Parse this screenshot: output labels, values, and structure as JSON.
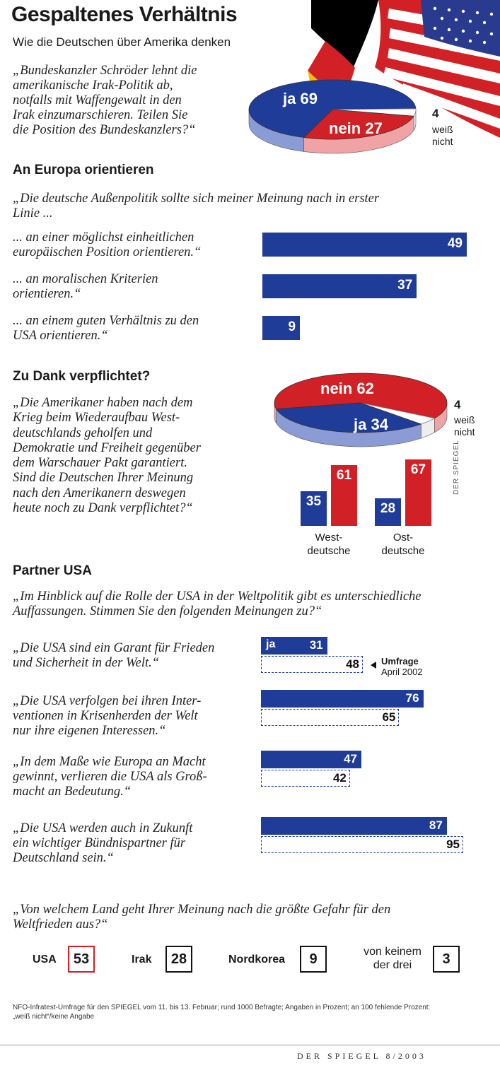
{
  "header": {
    "title": "Gespaltenes Verhältnis",
    "subtitle": "Wie die Deutschen über Amerika denken"
  },
  "colors": {
    "blue": "#1f3c99",
    "red": "#d12026",
    "blue_side": "#8a9bd6",
    "red_side": "#f0a3a5"
  },
  "chart_data": [
    {
      "id": "irak",
      "type": "pie",
      "question": "„Bundeskanzler Schröder lehnt die amerikanische Irak-Politik ab, notfalls mit Waffengewalt in den Irak einzumarschieren. Teilen Sie die Position des Bundeskanzlers?“",
      "question_lines": [
        "„Bundeskanzler Schröder lehnt die",
        "amerikanische Irak-Politik ab,",
        "notfalls mit Waffengewalt in den",
        "Irak einzumarschieren. Teilen Sie",
        "die Position des Bundeskanzlers?“"
      ],
      "slices": [
        {
          "label": "ja",
          "value": 69
        },
        {
          "label": "nein",
          "value": 27
        },
        {
          "label": "weiß nicht",
          "value": 4
        }
      ],
      "slice_text": {
        "ja": "ja  69",
        "nein": "nein  27",
        "other_value": "4",
        "other_l1": "weiß",
        "other_l2": "nicht"
      }
    },
    {
      "id": "europa",
      "type": "bar",
      "section": "An Europa orientieren",
      "question_lines": [
        "„Die deutsche Außenpolitik sollte sich meiner Meinung nach in erster",
        "Linie ..."
      ],
      "categories": [
        {
          "l1": "... an einer möglichst einheitlichen",
          "l2": "europäischen Position orientieren.“",
          "value": 49
        },
        {
          "l1": "... an moralischen Kriterien",
          "l2": "orientieren.“",
          "value": 37
        },
        {
          "l1": "... an einem guten Verhältnis zu den",
          "l2": "USA orientieren.“",
          "value": 9
        }
      ],
      "values": [
        49,
        37,
        9
      ],
      "xlim": [
        0,
        49
      ]
    },
    {
      "id": "dank",
      "type": "pie",
      "section": "Zu Dank verpflichtet?",
      "question_lines": [
        "„Die Amerikaner haben nach dem",
        "Krieg beim Wiederaufbau West-",
        "deutschlands geholfen und",
        "Demokratie und Freiheit gegenüber",
        "dem Warschauer Pakt garantiert.",
        "Sind die Deutschen Ihrer Meinung",
        "nach den Amerikanern deswegen",
        "heute noch zu Dank verpflichtet?“"
      ],
      "slices": [
        {
          "label": "nein",
          "value": 62
        },
        {
          "label": "ja",
          "value": 34
        },
        {
          "label": "weiß nicht",
          "value": 4
        }
      ],
      "slice_text": {
        "nein": "nein  62",
        "ja": "ja  34",
        "other_value": "4",
        "other_l1": "weiß",
        "other_l2": "nicht"
      }
    },
    {
      "id": "dank_regions",
      "type": "bar",
      "categories": [
        {
          "l1": "West-",
          "l2": "deutsche"
        },
        {
          "l1": "Ost-",
          "l2": "deutsche"
        }
      ],
      "series": [
        {
          "name": "ja",
          "values": [
            35,
            28
          ]
        },
        {
          "name": "nein",
          "values": [
            61,
            67
          ]
        }
      ],
      "ylim": [
        0,
        67
      ]
    },
    {
      "id": "partner",
      "type": "bar",
      "section": "Partner USA",
      "question_lines": [
        "„Im Hinblick auf die Rolle der USA in der Weltpolitik gibt es unterschiedliche",
        "Auffassungen. Stimmen Sie den folgenden Meinungen zu?“"
      ],
      "series_names": [
        "ja",
        "Umfrage April 2002"
      ],
      "legend": {
        "l1": "Umfrage",
        "l2": "April 2002"
      },
      "ja_label": "ja",
      "statements": [
        {
          "lines": [
            "„Die USA sind ein Garant für Frieden",
            "und Sicherheit in der Welt.“"
          ],
          "now": 31,
          "prev": 48
        },
        {
          "lines": [
            "„Die USA verfolgen bei ihren Inter-",
            "ventionen in Krisenherden der Welt",
            "nur ihre eigenen Interessen.“"
          ],
          "now": 76,
          "prev": 65
        },
        {
          "lines": [
            "„In dem Maße wie Europa an Macht",
            "gewinnt, verlieren die USA als Groß-",
            "macht an Bedeutung.“"
          ],
          "now": 47,
          "prev": 42
        },
        {
          "lines": [
            "„Die USA werden auch in Zukunft",
            "ein wichtiger Bündnispartner für",
            "Deutschland sein.“"
          ],
          "now": 87,
          "prev": 95
        }
      ],
      "xlim": [
        0,
        95
      ]
    },
    {
      "id": "gefahr",
      "type": "table",
      "question_lines": [
        "„Von welchem Land geht Ihrer Meinung nach die größte Gefahr für den",
        "Weltfrieden aus?“"
      ],
      "countries": [
        {
          "name": "USA",
          "value": 53
        },
        {
          "name": "Irak",
          "value": 28
        },
        {
          "name": "Nordkorea",
          "value": 9
        },
        {
          "name_l1": "von keinem",
          "name_l2": "der drei",
          "value": 3
        }
      ]
    }
  ],
  "side_credit": "DER SPIEGEL",
  "footnote_lines": [
    "NFO-Infratest-Umfrage für den SPIEGEL vom 11. bis 13. Februar; rund 1000 Befragte; Angaben in Prozent; an 100 fehlende Prozent:",
    "„weiß nicht“/keine Angabe"
  ],
  "footer": "DER SPIEGEL 8/2003"
}
